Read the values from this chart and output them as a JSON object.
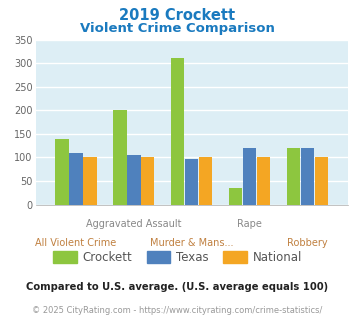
{
  "title_line1": "2019 Crockett",
  "title_line2": "Violent Crime Comparison",
  "title_color": "#1a7abf",
  "categories": [
    "All Violent Crime",
    "Aggravated Assault",
    "Murder & Mans...",
    "Rape",
    "Robbery"
  ],
  "crockett_values": [
    140,
    200,
    310,
    35,
    120
  ],
  "texas_values": [
    110,
    105,
    97,
    120,
    120
  ],
  "national_values": [
    100,
    100,
    100,
    100,
    100
  ],
  "crockett_color": "#8dc63f",
  "texas_color": "#4f81bd",
  "national_color": "#f4a623",
  "bg_color": "#ddeef5",
  "ylim": [
    0,
    350
  ],
  "yticks": [
    0,
    50,
    100,
    150,
    200,
    250,
    300,
    350
  ],
  "legend_labels": [
    "Crockett",
    "Texas",
    "National"
  ],
  "footnote1": "Compared to U.S. average. (U.S. average equals 100)",
  "footnote2": "© 2025 CityRating.com - https://www.cityrating.com/crime-statistics/",
  "footnote1_color": "#222222",
  "footnote2_color": "#999999",
  "url_color": "#4472c4",
  "grid_color": "#ffffff"
}
